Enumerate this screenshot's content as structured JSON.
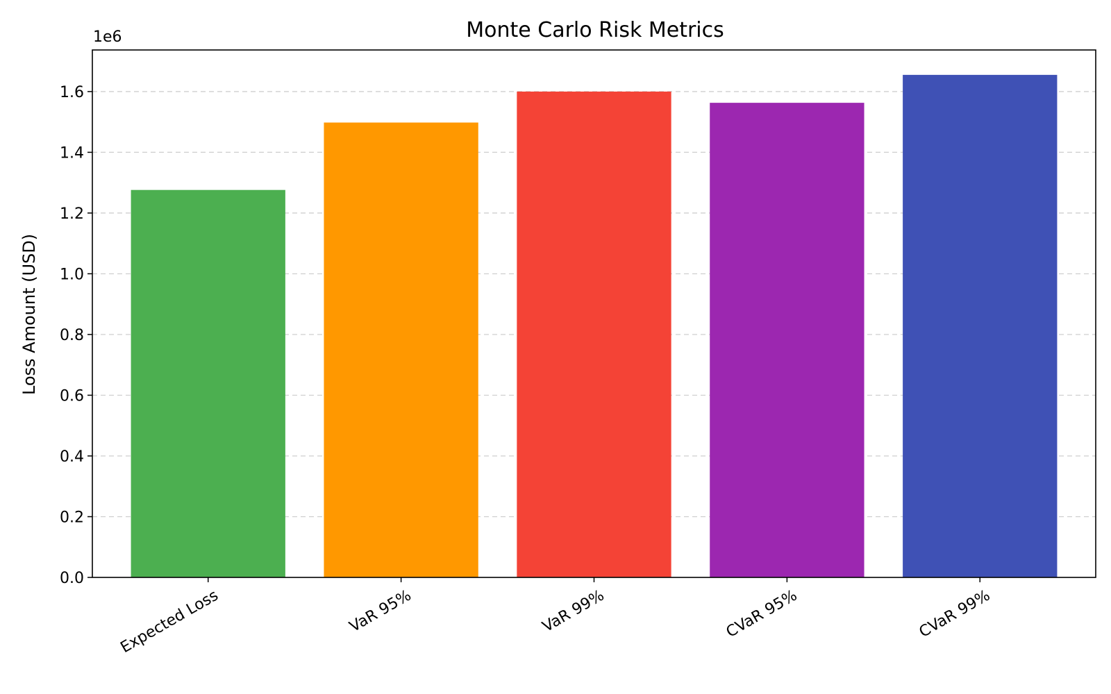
{
  "chart_data": {
    "type": "bar",
    "title": "Monte Carlo Risk Metrics",
    "xlabel": "",
    "ylabel": "Loss Amount (USD)",
    "y_offset_label": "1e6",
    "y_scale": 1000000,
    "categories": [
      "Expected Loss",
      "VaR 95%",
      "VaR 99%",
      "CVaR 95%",
      "CVaR 99%"
    ],
    "values": [
      1276000,
      1498000,
      1600000,
      1563000,
      1655000
    ],
    "colors": [
      "#4caf50",
      "#ff9800",
      "#f44336",
      "#9c27b0",
      "#3f51b5"
    ],
    "ylim": [
      0,
      1737000
    ],
    "yticks": [
      0,
      200000,
      400000,
      600000,
      800000,
      1000000,
      1200000,
      1400000,
      1600000
    ],
    "ytick_labels": [
      "0.0",
      "0.2",
      "0.4",
      "0.6",
      "0.8",
      "1.0",
      "1.2",
      "1.4",
      "1.6"
    ],
    "grid": "y-dashed",
    "legend": "none"
  }
}
